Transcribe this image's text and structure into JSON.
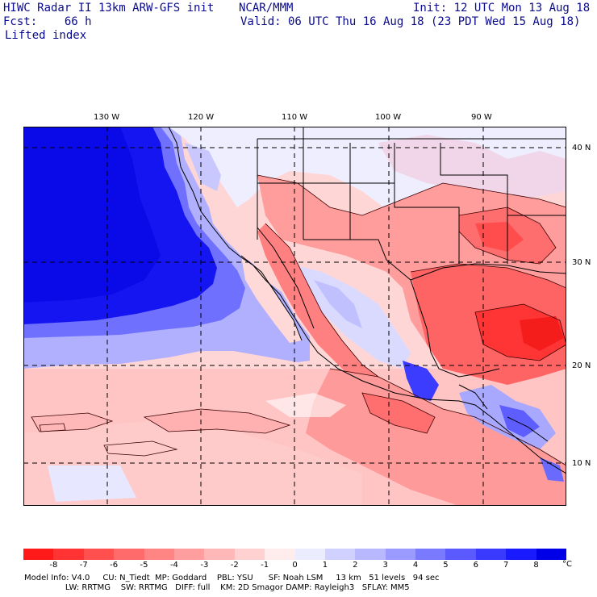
{
  "header": {
    "model": "HIWC Radar II 13km ARW-GFS init",
    "source": "NCAR/MMM",
    "init": "Init: 12 UTC Mon 13 Aug 18",
    "fcst": "Fcst:    66 h",
    "valid": "Valid: 06 UTC Thu 16 Aug 18 (23 PDT Wed 15 Aug 18)",
    "field": "Lifted index"
  },
  "map": {
    "lon_labels": [
      "130 W",
      "120 W",
      "110 W",
      "100 W",
      "90 W"
    ],
    "lat_labels": [
      "40 N",
      "30 N",
      "20 N",
      "10 N"
    ]
  },
  "colorbar": {
    "unit": "°C",
    "ticks": [
      "-8",
      "-7",
      "-6",
      "-5",
      "-4",
      "-3",
      "-2",
      "-1",
      "0",
      "1",
      "2",
      "3",
      "4",
      "5",
      "6",
      "7",
      "8"
    ],
    "colors": [
      "#ff1a1a",
      "#ff3333",
      "#ff5050",
      "#ff6b6b",
      "#ff8585",
      "#ff9e9e",
      "#ffb8b8",
      "#ffd1d1",
      "#ffecec",
      "#ececff",
      "#d1d1ff",
      "#b8b8ff",
      "#9a9aff",
      "#7a7aff",
      "#5a5aff",
      "#3a3aff",
      "#1a1aff",
      "#0000e8"
    ]
  },
  "footer": {
    "line1": "Model Info: V4.0     CU: N_Tiedt  MP: Goddard    PBL: YSU      SF: Noah LSM     13 km   51 levels   94 sec",
    "line2": "                LW: RRTMG    SW: RRTMG   DIFF: full    KM: 2D Smagor DAMP: Rayleigh3   SFLAY: MM5"
  }
}
